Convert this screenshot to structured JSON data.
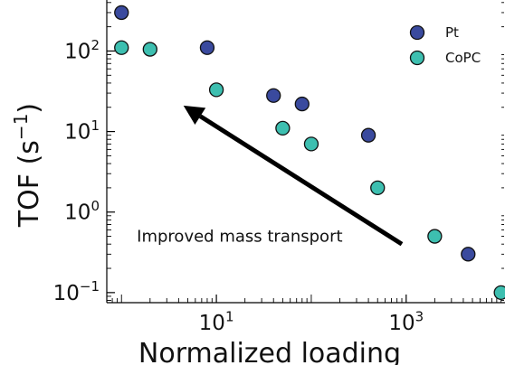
{
  "chart_data": {
    "type": "scatter",
    "xscale": "log",
    "yscale": "log",
    "xlabel": "Normalized loading",
    "ylabel_base": "TOF",
    "ylabel_unit_prefix": "(s",
    "ylabel_unit_exp": "−1",
    "ylabel_unit_suffix": ")",
    "x_ticks": [
      {
        "value": 10,
        "base": "10",
        "exp": "1"
      },
      {
        "value": 1000,
        "base": "10",
        "exp": "3"
      }
    ],
    "y_ticks": [
      {
        "value": 100,
        "base": "10",
        "exp": "2"
      },
      {
        "value": 10,
        "base": "10",
        "exp": "1"
      },
      {
        "value": 1,
        "base": "10",
        "exp": "0"
      },
      {
        "value": 0.1,
        "base": "10",
        "exp": "−1"
      }
    ],
    "xlim": [
      0.7,
      11000
    ],
    "ylim": [
      0.075,
      430
    ],
    "legend_position": "top-right",
    "series": [
      {
        "name": "Pt",
        "color": "#3a4a9e",
        "points": [
          {
            "x": 1.0,
            "y": 300
          },
          {
            "x": 8.0,
            "y": 110
          },
          {
            "x": 40,
            "y": 28
          },
          {
            "x": 80,
            "y": 22
          },
          {
            "x": 400,
            "y": 9
          },
          {
            "x": 4500,
            "y": 0.3
          }
        ]
      },
      {
        "name": "CoPC",
        "color": "#3dbfb0",
        "points": [
          {
            "x": 1.0,
            "y": 110
          },
          {
            "x": 2.0,
            "y": 105
          },
          {
            "x": 10,
            "y": 33
          },
          {
            "x": 50,
            "y": 11
          },
          {
            "x": 100,
            "y": 7
          },
          {
            "x": 500,
            "y": 2.0
          },
          {
            "x": 2000,
            "y": 0.5
          },
          {
            "x": 10000,
            "y": 0.1
          }
        ]
      }
    ],
    "annotation": {
      "text": "Improved mass transport",
      "arrow_from": {
        "x": 900,
        "y": 0.4
      },
      "arrow_to": {
        "x": 4.5,
        "y": 21
      }
    }
  }
}
